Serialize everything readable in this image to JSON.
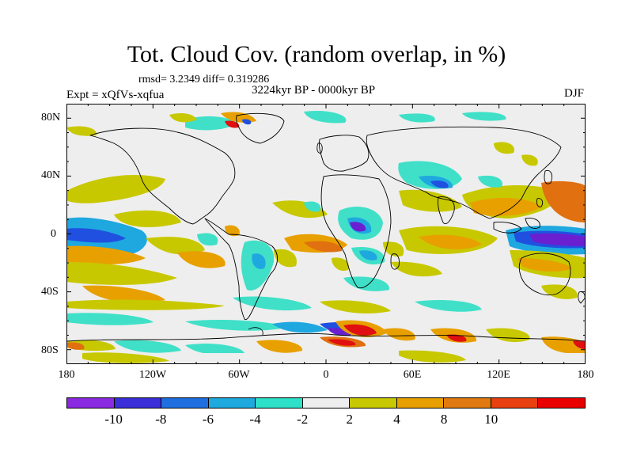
{
  "title": "Tot. Cloud Cov. (random overlap, in %)",
  "stats": "rmsd= 3.2349 diff= 0.319286",
  "period": "3224kyr BP - 0000kyr BP",
  "experiment": "Expt = xQfVs-xqfua",
  "season": "DJF",
  "lat_ticks": [
    "80N",
    "40N",
    "0",
    "40S",
    "80S"
  ],
  "lon_ticks": [
    "180",
    "120W",
    "60W",
    "0",
    "60E",
    "120E",
    "180"
  ],
  "colorbar": {
    "labels": [
      "-10",
      "-8",
      "-6",
      "-4",
      "-2",
      "2",
      "4",
      "8",
      "10"
    ],
    "colors": [
      "#8a2be2",
      "#3a2fd8",
      "#1f6fe0",
      "#1faadf",
      "#2fe0c8",
      "#eeeeee",
      "#c8c800",
      "#e8a000",
      "#e07a10",
      "#e84010",
      "#e80000"
    ]
  },
  "colors": {
    "neg_strong": "#6a1fd0",
    "neg": "#2050e0",
    "neg_mid": "#1fa8e0",
    "neg_weak": "#40e0c8",
    "neutral": "#eeeeee",
    "pos_weak": "#c8c800",
    "pos": "#e8a000",
    "pos_mid": "#e07010",
    "pos_strong": "#e01010"
  }
}
